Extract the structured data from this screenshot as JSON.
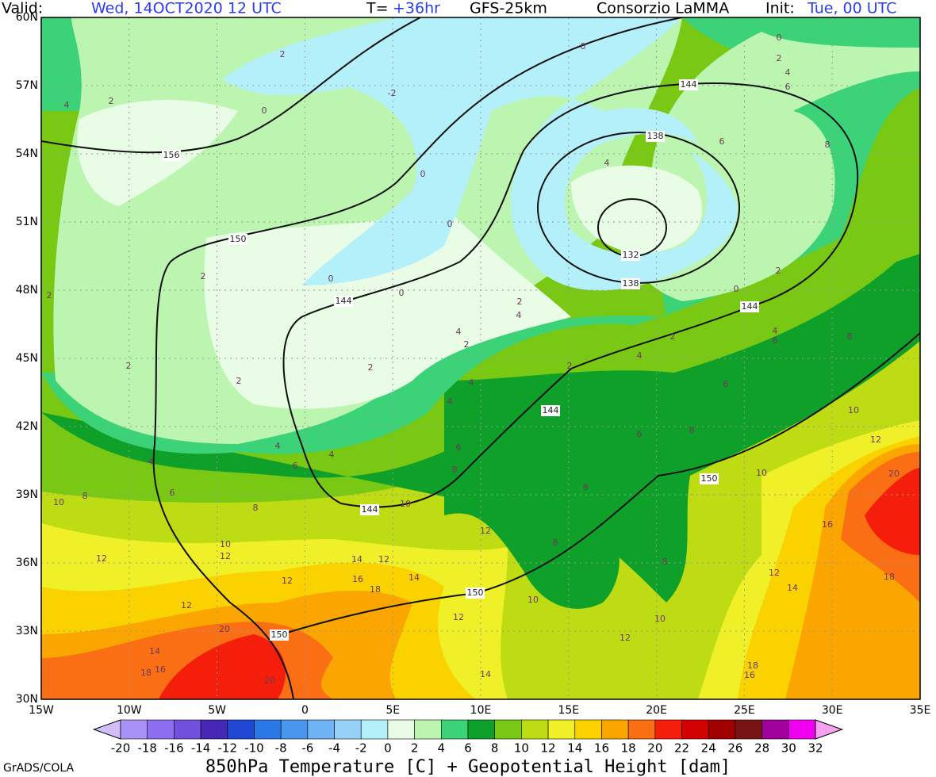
{
  "header": {
    "valid_label": "Valid:",
    "valid_time": "Wed, 14OCT2020 12 UTC",
    "t_label": "T=",
    "t_value": "+36hr",
    "model": "GFS-25km",
    "source": "Consorzio LaMMA",
    "init_label": "Init:",
    "init_time": "Tue, 00 UTC"
  },
  "map": {
    "lat_labels": [
      "60N",
      "57N",
      "54N",
      "51N",
      "48N",
      "45N",
      "42N",
      "39N",
      "36N",
      "33N",
      "30N"
    ],
    "lon_labels": [
      "15W",
      "10W",
      "5W",
      "0",
      "5E",
      "10E",
      "15E",
      "20E",
      "25E",
      "30E",
      "35E"
    ],
    "temperature_labels": [
      4,
      2,
      2,
      0,
      -2,
      0,
      0,
      2,
      4,
      6,
      6,
      8,
      4,
      0,
      0,
      0,
      0,
      2,
      2,
      2,
      2,
      2,
      2,
      0,
      2,
      4,
      2,
      4,
      4,
      6,
      8,
      2,
      4,
      2,
      4,
      4,
      6,
      10,
      8,
      6,
      12,
      4,
      4,
      6,
      4,
      6,
      8,
      6,
      8,
      10,
      10,
      20,
      10,
      8,
      8,
      16,
      12,
      10,
      12,
      12,
      14,
      12,
      8,
      8,
      12,
      18,
      16,
      18,
      14,
      12,
      14,
      10,
      12,
      12,
      10,
      20,
      12,
      14,
      18,
      16,
      18,
      16,
      14,
      20
    ],
    "height_labels": [
      156,
      150,
      144,
      144,
      138,
      132,
      138,
      144,
      144,
      144,
      150,
      150,
      150
    ]
  },
  "colorbar": {
    "ticks": [
      -20,
      -18,
      -16,
      -14,
      -12,
      -10,
      -8,
      -6,
      -4,
      -2,
      0,
      2,
      4,
      6,
      8,
      10,
      12,
      14,
      16,
      18,
      20,
      22,
      24,
      26,
      28,
      30,
      32
    ],
    "colors": [
      "#d2bef8",
      "#a892f5",
      "#8c6ef0",
      "#7050dc",
      "#4628b4",
      "#2046d2",
      "#2a78e6",
      "#4896ee",
      "#6eb4f4",
      "#96d2f8",
      "#b4f0fa",
      "#e8fce6",
      "#bcf5b0",
      "#3cd278",
      "#0fa02a",
      "#78c814",
      "#bedc14",
      "#f0f028",
      "#fad200",
      "#faa500",
      "#fa6e14",
      "#f51e0a",
      "#d20000",
      "#a00000",
      "#781414",
      "#a0009b",
      "#f000f0",
      "#f5a0f0"
    ]
  },
  "title": "850hPa Temperature [C] + Geopotential Height [dam]",
  "credit": "GrADS/COLA"
}
